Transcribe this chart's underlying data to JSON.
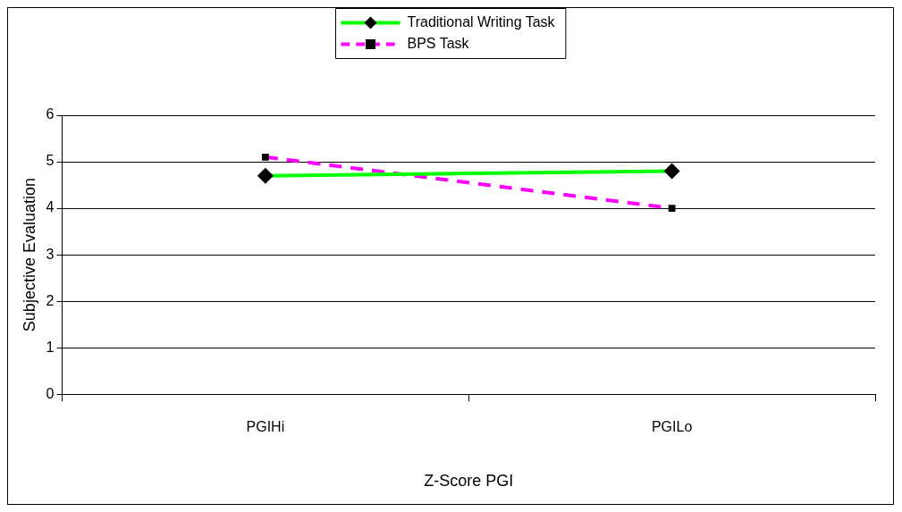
{
  "chart_data": {
    "type": "line",
    "xlabel": "Z-Score PGI",
    "ylabel": "Subjective Evaluation",
    "categories": [
      "PGIHi",
      "PGILo"
    ],
    "series": [
      {
        "name": "Traditional Writing Task",
        "color": "#00ff00",
        "values": [
          4.7,
          4.8
        ],
        "marker": "diamond",
        "line_style": "solid"
      },
      {
        "name": "BPS Task",
        "color": "#ff00ff",
        "values": [
          5.1,
          4.0
        ],
        "marker": "square",
        "line_style": "dashed"
      }
    ],
    "ylim": [
      0,
      6
    ],
    "yticks": [
      0,
      1,
      2,
      3,
      4,
      5,
      6
    ],
    "grid": "y",
    "legend": "top"
  }
}
